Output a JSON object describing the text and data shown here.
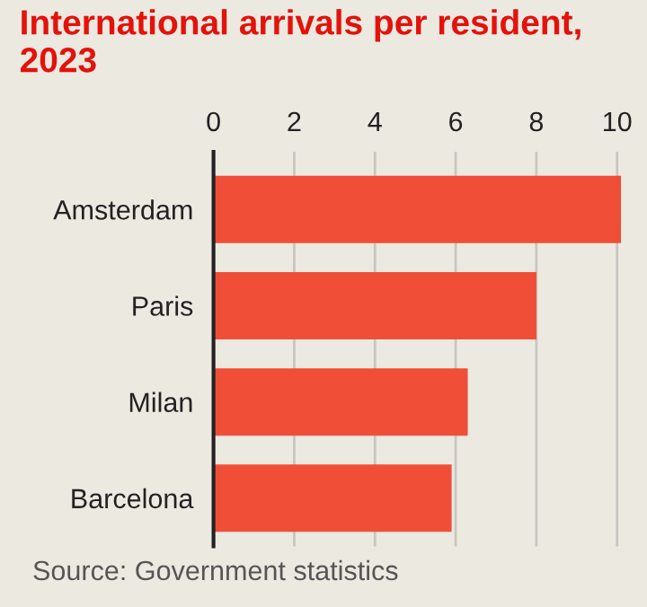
{
  "chart_data": {
    "type": "bar",
    "orientation": "horizontal",
    "title": "International arrivals per resident, 2023",
    "categories": [
      "Amsterdam",
      "Paris",
      "Milan",
      "Barcelona"
    ],
    "values": [
      10.1,
      8.0,
      6.3,
      5.9
    ],
    "color": "#f04e37",
    "xlim": [
      0,
      10.1
    ],
    "xticks": [
      0,
      2,
      4,
      6,
      8,
      10
    ],
    "grid": "x",
    "annotations": [
      "Source: Government statistics"
    ]
  }
}
